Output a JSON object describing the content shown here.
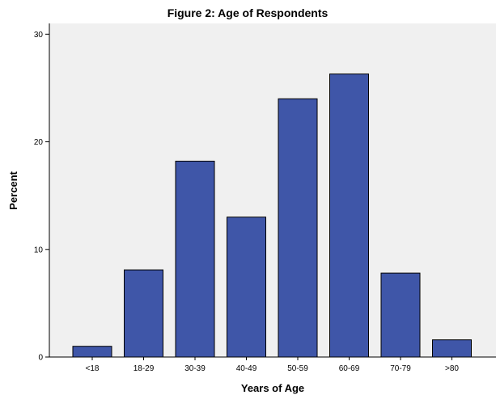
{
  "chart_data": {
    "type": "bar",
    "title": "Figure 2: Age of Respondents",
    "xlabel": "Years of Age",
    "ylabel": "Percent",
    "categories": [
      "<18",
      "18-29",
      "30-39",
      "40-49",
      "50-59",
      "60-69",
      "70-79",
      ">80"
    ],
    "values": [
      1.0,
      8.1,
      18.2,
      13.0,
      24.0,
      26.3,
      7.8,
      1.6
    ],
    "ylim": [
      0,
      31
    ],
    "yticks": [
      0,
      10,
      20,
      30
    ],
    "grid": false,
    "legend": "none",
    "colors": {
      "bar_fill": "#3f56a8",
      "bar_stroke": "#000000",
      "plot_bg": "#f0f0f0",
      "axis": "#000000"
    }
  }
}
